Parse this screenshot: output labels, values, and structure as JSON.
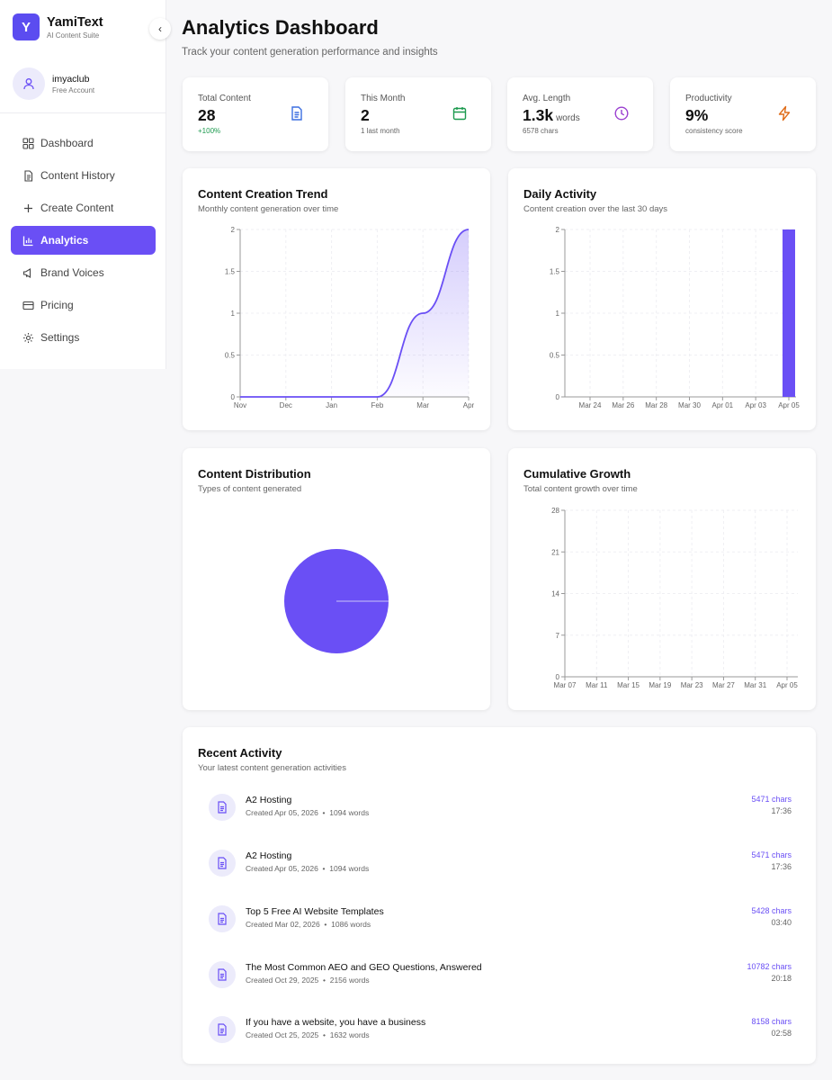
{
  "brand": {
    "logo_letter": "Y",
    "name": "YamiText",
    "tagline": "AI Content Suite"
  },
  "sidebar": {
    "collapse_glyph": "‹",
    "user": {
      "name": "imyaclub",
      "plan": "Free Account"
    },
    "items": [
      {
        "label": "Dashboard",
        "icon": "grid-icon",
        "active": false
      },
      {
        "label": "Content History",
        "icon": "file-icon",
        "active": false
      },
      {
        "label": "Create Content",
        "icon": "plus-icon",
        "active": false
      },
      {
        "label": "Analytics",
        "icon": "bar-chart-icon",
        "active": true
      },
      {
        "label": "Brand Voices",
        "icon": "megaphone-icon",
        "active": false
      },
      {
        "label": "Pricing",
        "icon": "credit-card-icon",
        "active": false
      },
      {
        "label": "Settings",
        "icon": "gear-icon",
        "active": false
      }
    ]
  },
  "header": {
    "title": "Analytics Dashboard",
    "subtitle": "Track your content generation performance and insights"
  },
  "stats": [
    {
      "label": "Total Content",
      "value": "28",
      "unit": "",
      "meta": "+100%",
      "icon": "document-icon",
      "color": "#3b6fe0"
    },
    {
      "label": "This Month",
      "value": "2",
      "unit": "",
      "meta": "1 last month",
      "icon": "calendar-icon",
      "color": "#1d9a4f"
    },
    {
      "label": "Avg. Length",
      "value": "1.3k",
      "unit": "words",
      "meta": "6578 chars",
      "icon": "clock-icon",
      "color": "#9a3fd0"
    },
    {
      "label": "Productivity",
      "value": "9%",
      "unit": "",
      "meta": "consistency score",
      "icon": "lightning-icon",
      "color": "#e06d1a"
    }
  ],
  "cards": {
    "trend": {
      "title": "Content Creation Trend",
      "subtitle": "Monthly content generation over time"
    },
    "daily": {
      "title": "Daily Activity",
      "subtitle": "Content creation over the last 30 days"
    },
    "distribution": {
      "title": "Content Distribution",
      "subtitle": "Types of content generated"
    },
    "cumulative": {
      "title": "Cumulative Growth",
      "subtitle": "Total content growth over time"
    }
  },
  "chart_data": [
    {
      "type": "area",
      "categories": [
        "Nov",
        "Dec",
        "Jan",
        "Feb",
        "Mar",
        "Apr"
      ],
      "values": [
        0,
        0,
        0,
        0,
        1,
        2
      ],
      "ylim": [
        0,
        2
      ],
      "yticks": [
        "0",
        "0.5",
        "1",
        "1.5",
        "2"
      ],
      "color": "#6a4ff5"
    },
    {
      "type": "bar",
      "xticks": [
        "Mar 24",
        "Mar 26",
        "Mar 28",
        "Mar 30",
        "Apr 01",
        "Apr 03",
        "Apr 05"
      ],
      "x": [
        "Apr 05"
      ],
      "values": [
        2
      ],
      "ylim": [
        0,
        2
      ],
      "yticks": [
        "0",
        "0.5",
        "1",
        "1.5",
        "2"
      ],
      "color": "#6a4ff5"
    },
    {
      "type": "pie",
      "values": [
        1
      ],
      "color": "#6a4ff5"
    },
    {
      "type": "line",
      "xticks": [
        "Mar 07",
        "Mar 11",
        "Mar 15",
        "Mar 19",
        "Mar 23",
        "Mar 27",
        "Mar 31",
        "Apr 05"
      ],
      "ylim": [
        0,
        28
      ],
      "yticks": [
        "0",
        "7",
        "14",
        "21",
        "28"
      ],
      "color": "#6a4ff5"
    }
  ],
  "recent": {
    "title": "Recent Activity",
    "subtitle": "Your latest content generation activities",
    "items": [
      {
        "title": "A2 Hosting",
        "created": "Created Apr 05, 2026",
        "words": "1094 words",
        "chars": "5471 chars",
        "time": "17:36"
      },
      {
        "title": "A2 Hosting",
        "created": "Created Apr 05, 2026",
        "words": "1094 words",
        "chars": "5471 chars",
        "time": "17:36"
      },
      {
        "title": "Top 5 Free AI Website Templates",
        "created": "Created Mar 02, 2026",
        "words": "1086 words",
        "chars": "5428 chars",
        "time": "03:40"
      },
      {
        "title": "The Most Common AEO and GEO Questions, Answered",
        "created": "Created Oct 29, 2025",
        "words": "2156 words",
        "chars": "10782 chars",
        "time": "20:18"
      },
      {
        "title": "If you have a website, you have a business",
        "created": "Created Oct 25, 2025",
        "words": "1632 words",
        "chars": "8158 chars",
        "time": "02:58"
      }
    ]
  }
}
